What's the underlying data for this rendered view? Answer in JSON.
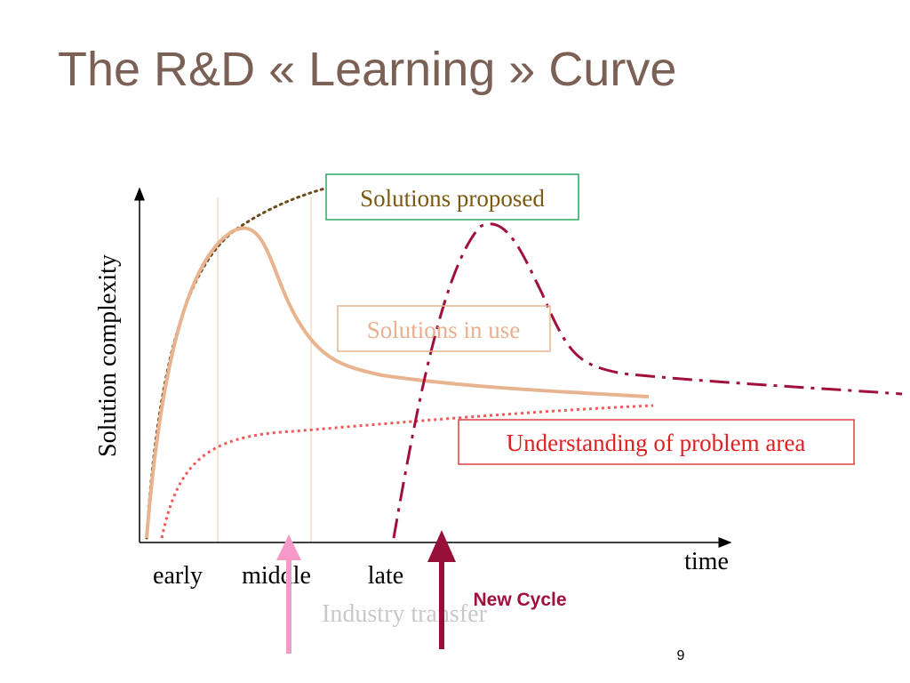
{
  "header": {
    "title": "The R&D « Learning » Curve"
  },
  "axes": {
    "y_label": "Solution complexity",
    "x_label": "time"
  },
  "phases": [
    "early",
    "middle",
    "late"
  ],
  "curves": {
    "proposed": "Solutions proposed",
    "in_use": "Solutions in use",
    "understanding": "Understanding of problem area"
  },
  "arrows": {
    "industry_transfer": "Industry transfer",
    "new_cycle": "New Cycle"
  },
  "footer": {
    "page_number": "9"
  }
}
